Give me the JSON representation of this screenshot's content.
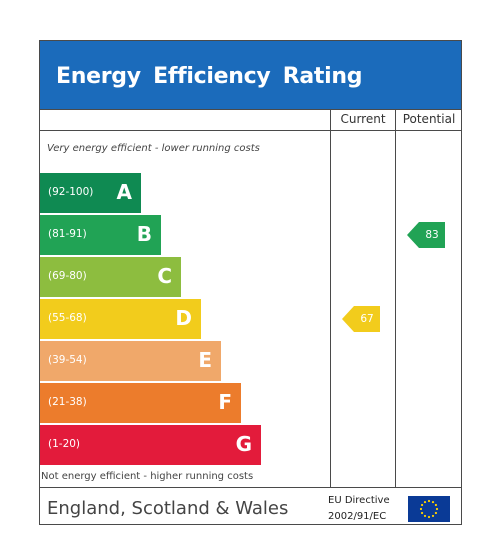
{
  "title": "Energy  Efficiency  Rating",
  "columns": {
    "current": "Current",
    "potential": "Potential"
  },
  "notes": {
    "top": "Very energy efficient - lower running costs",
    "bottom": "Not energy efficient - higher running costs"
  },
  "bands": [
    {
      "range": "(92-100)",
      "letter": "A",
      "color": "#0f8a52"
    },
    {
      "range": "(81-91)",
      "letter": "B",
      "color": "#21a355"
    },
    {
      "range": "(69-80)",
      "letter": "C",
      "color": "#8dbd3f"
    },
    {
      "range": "(55-68)",
      "letter": "D",
      "color": "#f2cc1c"
    },
    {
      "range": "(39-54)",
      "letter": "E",
      "color": "#f0a86a"
    },
    {
      "range": "(21-38)",
      "letter": "F",
      "color": "#ec7c2c"
    },
    {
      "range": "(1-20)",
      "letter": "G",
      "color": "#e31b3b"
    }
  ],
  "current": {
    "value": "67",
    "band": "D",
    "color": "#f2cc1c"
  },
  "potential": {
    "value": "83",
    "band": "B",
    "color": "#21a355"
  },
  "footer": {
    "region": "England, Scotland & Wales",
    "directive_line1": "EU Directive",
    "directive_line2": "2002/91/EC",
    "flag_icon": "eu-flag-icon"
  }
}
